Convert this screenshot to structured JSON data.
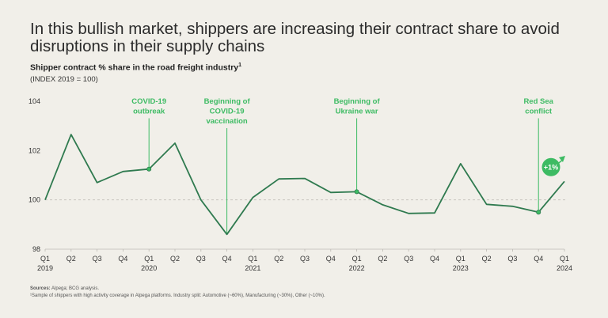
{
  "headline": "In this bullish market, shippers are increasing their contract share to avoid disruptions in their supply chains",
  "subtitle": "Shipper contract % share in the road freight industry",
  "subtitle_footnote_mark": "1",
  "index_note": "(INDEX 2019 = 100)",
  "footer": {
    "sources_label": "Sources:",
    "sources_text": "Alpega; BCG analysis.",
    "note": "¹Sample of shippers with high activity coverage in Alpega platforms. Industry split: Automotive (~60%), Manufacturing (~30%), Other (~10%)."
  },
  "colors": {
    "line": "#2f7a4f",
    "accent": "#3dbb63",
    "grid": "#bdbab4",
    "baseline": "#c8c5bf"
  },
  "chart_data": {
    "type": "line",
    "title": "Shipper contract % share in the road freight industry",
    "xlabel": "",
    "ylabel": "INDEX 2019 = 100",
    "ylim": [
      98,
      104
    ],
    "yticks": [
      98,
      100,
      102,
      104
    ],
    "reference_line": 100,
    "categories": [
      "Q1",
      "Q2",
      "Q3",
      "Q4",
      "Q1",
      "Q2",
      "Q3",
      "Q4",
      "Q1",
      "Q2",
      "Q3",
      "Q4",
      "Q1",
      "Q2",
      "Q3",
      "Q4",
      "Q1",
      "Q2",
      "Q3",
      "Q4",
      "Q1"
    ],
    "years": [
      {
        "label": "2019",
        "index": 0
      },
      {
        "label": "2020",
        "index": 4
      },
      {
        "label": "2021",
        "index": 8
      },
      {
        "label": "2022",
        "index": 12
      },
      {
        "label": "2023",
        "index": 16
      },
      {
        "label": "2024",
        "index": 20
      }
    ],
    "series": [
      {
        "name": "Shipper contract % share",
        "values": [
          100.0,
          102.65,
          100.7,
          101.15,
          101.25,
          102.3,
          100.0,
          98.6,
          100.1,
          100.85,
          100.87,
          100.3,
          100.33,
          99.8,
          99.45,
          99.47,
          101.47,
          99.82,
          99.74,
          99.5,
          100.75
        ]
      }
    ],
    "annotations": [
      {
        "index": 4,
        "lines": [
          "COVID-19",
          "outbreak"
        ],
        "marker": true
      },
      {
        "index": 7,
        "lines": [
          "Beginning of",
          "COVID-19",
          "vaccination"
        ],
        "marker": false
      },
      {
        "index": 12,
        "lines": [
          "Beginning of",
          "Ukraine war"
        ],
        "marker": true
      },
      {
        "index": 19,
        "lines": [
          "Red Sea",
          "conflict"
        ],
        "marker": true
      }
    ],
    "badge": {
      "label": "+1%"
    }
  }
}
